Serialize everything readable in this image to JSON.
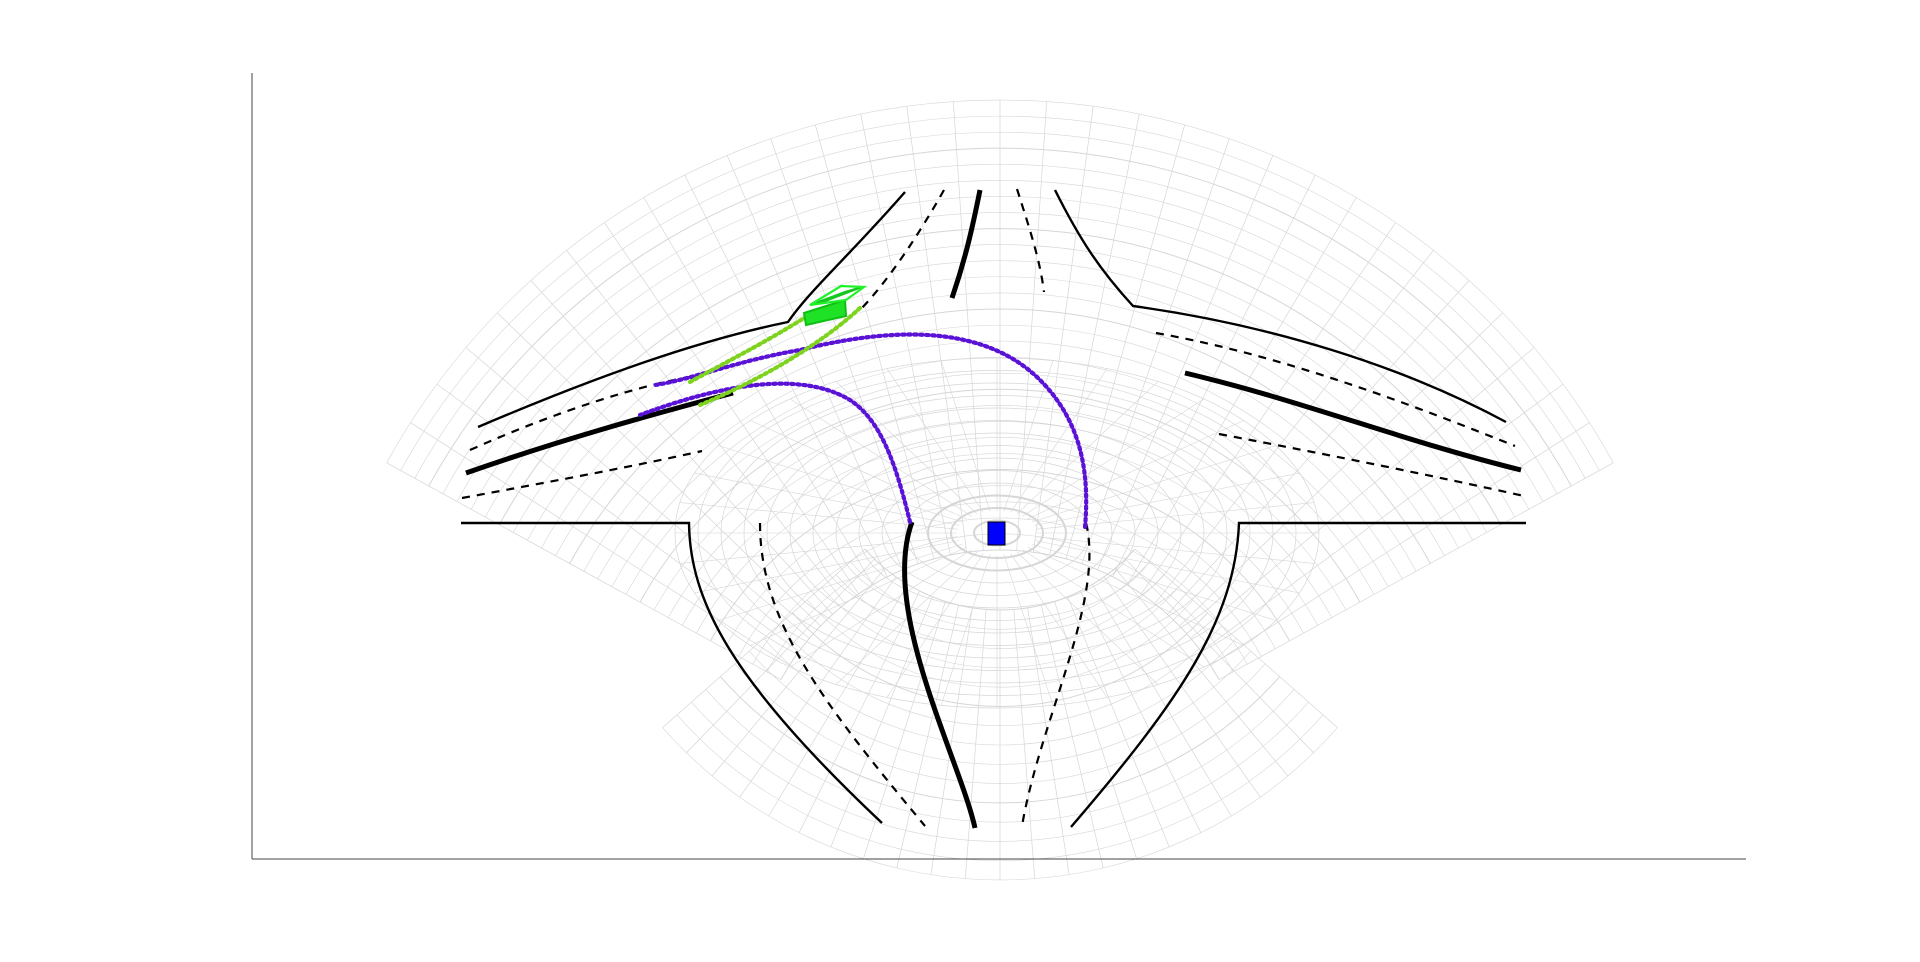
{
  "figure": {
    "type": "road-intersection-top-view",
    "axes": {
      "left_axis": true,
      "bottom_axis": true,
      "ticks": false,
      "tick_labels": false
    },
    "background_grid": {
      "style": "polar-fan",
      "visible": true,
      "color": "#d6d6d6"
    },
    "road_markings": {
      "boundary_color": "#000000",
      "lane_divider_style": "dashed",
      "center_line_style": "thick-solid"
    },
    "ego_vehicle": {
      "color": "#0000ff",
      "shape": "rectangle"
    },
    "detected_object": {
      "color": "#00ff00",
      "shape": "3d-box"
    },
    "planned_paths": {
      "color": "#5a12d6",
      "style": "dotted",
      "count": 2
    },
    "predicted_paths": {
      "color": "#7ed321",
      "style": "dotted",
      "count": 2
    }
  }
}
